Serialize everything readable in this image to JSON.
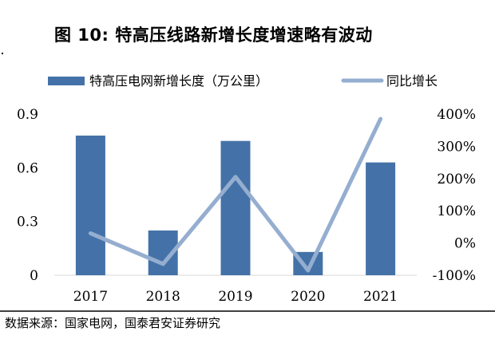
{
  "title": "图 10:  特高压线路新增长度增速略有波动",
  "source": "数据来源：国家电网，国泰君安证券研究",
  "chart_data": {
    "type": "bar+line",
    "categories": [
      "2017",
      "2018",
      "2019",
      "2020",
      "2021"
    ],
    "series": [
      {
        "name": "特高压电网新增长度（万公里）",
        "type": "bar",
        "axis": "left",
        "values": [
          0.78,
          0.25,
          0.75,
          0.13,
          0.63
        ],
        "color": "#4472a8"
      },
      {
        "name": "同比增长",
        "type": "line",
        "axis": "right",
        "values": [
          30,
          -65,
          205,
          -85,
          385
        ],
        "color": "#95aed0"
      }
    ],
    "left_axis": {
      "ylim": [
        0,
        0.9
      ],
      "ticks": [
        "0",
        "0.3",
        "0.6",
        "0.9"
      ],
      "tick_values": [
        0,
        0.3,
        0.6,
        0.9
      ]
    },
    "right_axis": {
      "ylim": [
        -100,
        400
      ],
      "ticks": [
        "-100%",
        "0%",
        "100%",
        "200%",
        "300%",
        "400%"
      ],
      "tick_values": [
        -100,
        0,
        100,
        200,
        300,
        400
      ]
    },
    "legend_position": "top"
  }
}
